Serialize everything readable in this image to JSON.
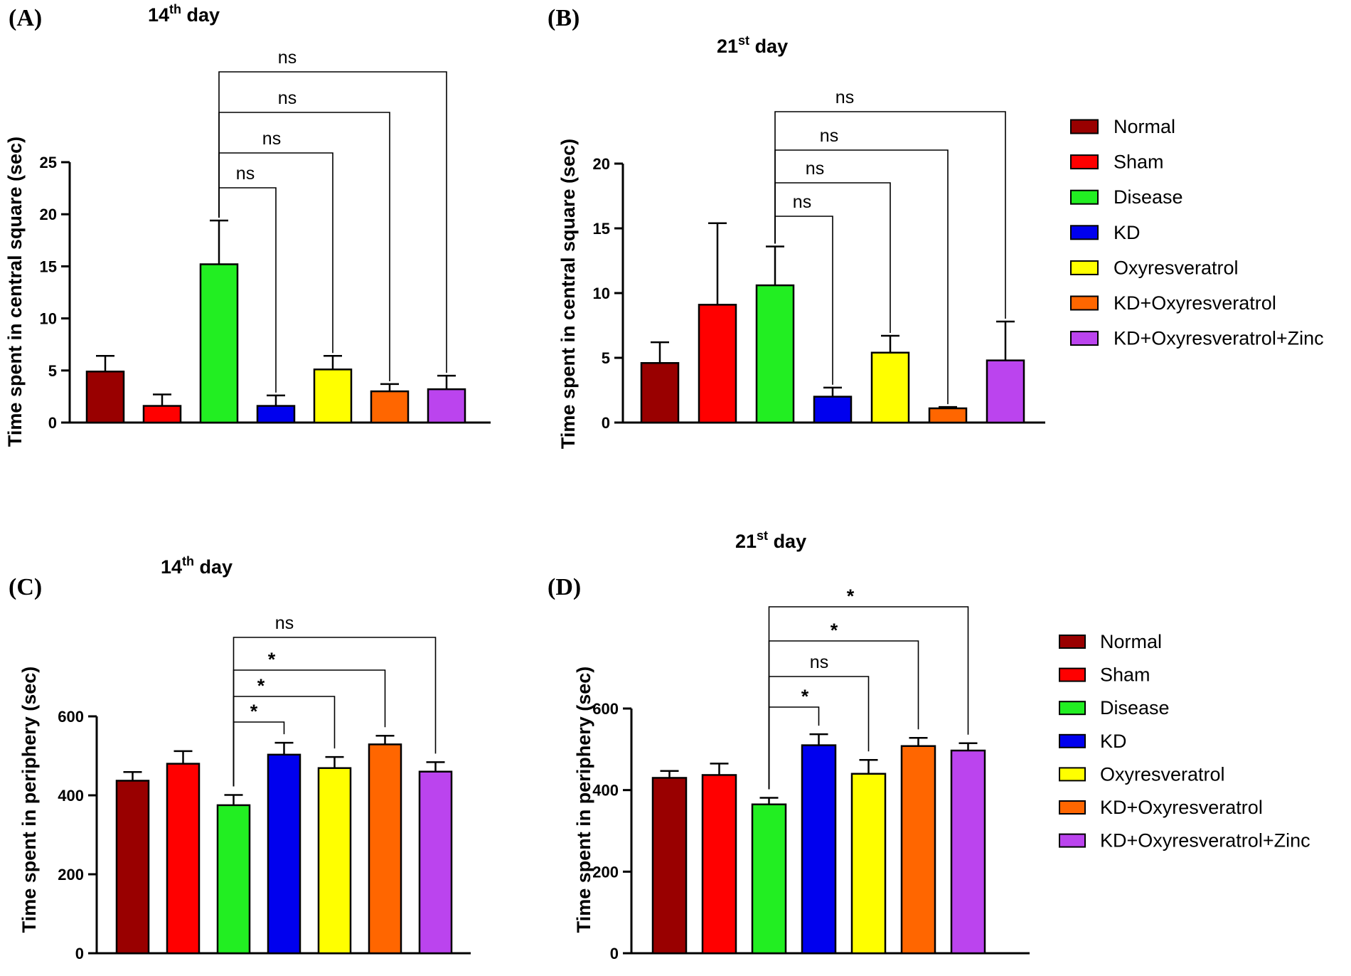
{
  "series_colors": [
    "#990000",
    "#ff0000",
    "#22ee22",
    "#0000ee",
    "#ffff00",
    "#ff6600",
    "#bb44ee"
  ],
  "legend": {
    "entries": [
      "Normal",
      "Sham",
      "Disease",
      "KD",
      "Oxyresveratrol",
      "KD+Oxyresveratrol",
      "KD+Oxyresveratrol+Zinc"
    ]
  },
  "chart_data": [
    {
      "panel": "(A)",
      "type": "bar",
      "title_main": "14",
      "title_sup": "th",
      "title_rest": " day",
      "ylabel": "Time spent in central square (sec)",
      "ylim": [
        0,
        25
      ],
      "yticks": [
        "0",
        "5",
        "10",
        "15",
        "20",
        "25"
      ],
      "categories": [
        "Normal",
        "Sham",
        "Disease",
        "KD",
        "Oxyresveratrol",
        "KD+Oxyresveratrol",
        "KD+Oxyresveratrol+Zinc"
      ],
      "values": [
        4.9,
        1.6,
        15.2,
        1.6,
        5.1,
        3.0,
        3.2
      ],
      "errors": [
        1.5,
        1.1,
        4.2,
        1.0,
        1.3,
        0.7,
        1.3
      ],
      "comparisons": [
        {
          "from": 2,
          "to": 3,
          "label": "ns"
        },
        {
          "from": 2,
          "to": 4,
          "label": "ns"
        },
        {
          "from": 2,
          "to": 5,
          "label": "ns"
        },
        {
          "from": 2,
          "to": 6,
          "label": "ns"
        }
      ]
    },
    {
      "panel": "(B)",
      "type": "bar",
      "title_main": "21",
      "title_sup": "st",
      "title_rest": " day",
      "ylabel": "Time spent in central square (sec)",
      "ylim": [
        0,
        20
      ],
      "yticks": [
        "0",
        "5",
        "10",
        "15",
        "20"
      ],
      "categories": [
        "Normal",
        "Sham",
        "Disease",
        "KD",
        "Oxyresveratrol",
        "KD+Oxyresveratrol",
        "KD+Oxyresveratrol+Zinc"
      ],
      "values": [
        4.6,
        9.1,
        10.6,
        2.0,
        5.4,
        1.1,
        4.8
      ],
      "errors": [
        1.6,
        6.3,
        3.0,
        0.7,
        1.3,
        0.1,
        3.0
      ],
      "comparisons": [
        {
          "from": 2,
          "to": 3,
          "label": "ns"
        },
        {
          "from": 2,
          "to": 4,
          "label": "ns"
        },
        {
          "from": 2,
          "to": 5,
          "label": "ns"
        },
        {
          "from": 2,
          "to": 6,
          "label": "ns"
        }
      ]
    },
    {
      "panel": "(C)",
      "type": "bar",
      "title_main": "14",
      "title_sup": "th",
      "title_rest": " day",
      "ylabel": "Time spent in periphery (sec)",
      "ylim": [
        0,
        600
      ],
      "yticks": [
        "0",
        "200",
        "400",
        "600"
      ],
      "categories": [
        "Normal",
        "Sham",
        "Disease",
        "KD",
        "Oxyresveratrol",
        "KD+Oxyresveratrol",
        "KD+Oxyresveratrol+Zinc"
      ],
      "values": [
        437,
        480,
        375,
        503,
        469,
        529,
        460
      ],
      "errors": [
        22,
        32,
        26,
        30,
        28,
        22,
        24
      ],
      "comparisons": [
        {
          "from": 2,
          "to": 3,
          "label": "*"
        },
        {
          "from": 2,
          "to": 4,
          "label": "*"
        },
        {
          "from": 2,
          "to": 5,
          "label": "*"
        },
        {
          "from": 2,
          "to": 6,
          "label": "ns"
        }
      ]
    },
    {
      "panel": "(D)",
      "type": "bar",
      "title_main": "21",
      "title_sup": "st",
      "title_rest": " day",
      "ylabel": "Time spent in periphery (sec)",
      "ylim": [
        0,
        600
      ],
      "yticks": [
        "0",
        "200",
        "400",
        "600"
      ],
      "categories": [
        "Normal",
        "Sham",
        "Disease",
        "KD",
        "Oxyresveratrol",
        "KD+Oxyresveratrol",
        "KD+Oxyresveratrol+Zinc"
      ],
      "values": [
        430,
        437,
        365,
        510,
        440,
        508,
        497
      ],
      "errors": [
        17,
        28,
        16,
        27,
        34,
        20,
        18
      ],
      "comparisons": [
        {
          "from": 2,
          "to": 3,
          "label": "*"
        },
        {
          "from": 2,
          "to": 4,
          "label": "ns"
        },
        {
          "from": 2,
          "to": 5,
          "label": "*"
        },
        {
          "from": 2,
          "to": 6,
          "label": "*"
        }
      ]
    }
  ]
}
